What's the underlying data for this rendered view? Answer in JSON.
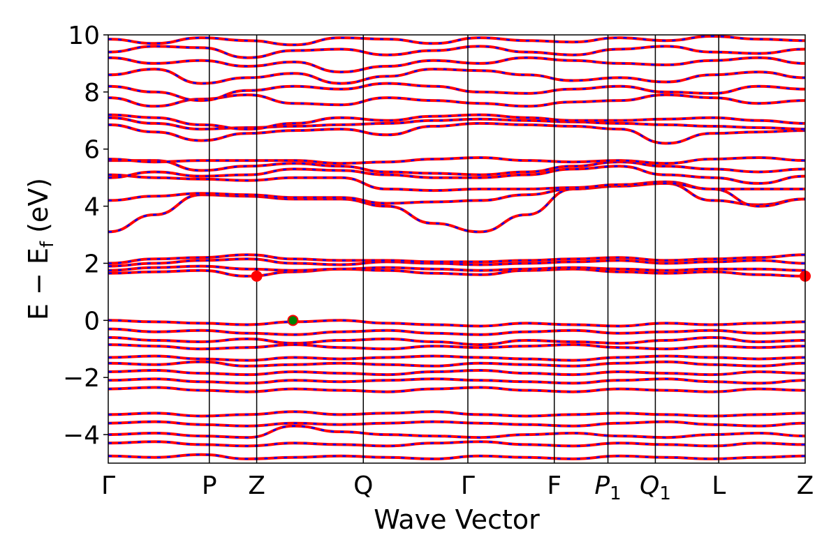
{
  "chart_data": {
    "type": "line",
    "title": "",
    "xlabel": "Wave Vector",
    "ylabel": {
      "main": "E − E",
      "sub": "f",
      "unit": " (eV)"
    },
    "ylim": [
      -5,
      10
    ],
    "yticks": [
      -4,
      -2,
      0,
      2,
      4,
      6,
      8,
      10
    ],
    "ytick_labels": [
      "−4",
      "−2",
      "0",
      "2",
      "4",
      "6",
      "8",
      "10"
    ],
    "kpoints": [
      {
        "label": "Γ",
        "sub": "",
        "italic": false,
        "x": 0.0
      },
      {
        "label": "P",
        "sub": "",
        "italic": false,
        "x": 1.45
      },
      {
        "label": "Z",
        "sub": "",
        "italic": false,
        "x": 2.13
      },
      {
        "label": "Q",
        "sub": "",
        "italic": false,
        "x": 3.66
      },
      {
        "label": "Γ",
        "sub": "",
        "italic": false,
        "x": 5.16
      },
      {
        "label": "F",
        "sub": "",
        "italic": false,
        "x": 6.4
      },
      {
        "label": "P",
        "sub": "1",
        "italic": true,
        "x": 7.17
      },
      {
        "label": "Q",
        "sub": "1",
        "italic": true,
        "x": 7.85
      },
      {
        "label": "L",
        "sub": "",
        "italic": false,
        "x": 8.76
      },
      {
        "label": "Z",
        "sub": "",
        "italic": false,
        "x": 10.0
      }
    ],
    "xlim": [
      0,
      10
    ],
    "colors": {
      "spin_up": "#ff0000",
      "spin_down": "#0000ff",
      "vbm": "#008000",
      "cbm": "#ff0000",
      "kline": "#000000"
    },
    "markers": [
      {
        "name": "VBM",
        "x": 2.65,
        "y": 0.0,
        "color": "#008000"
      },
      {
        "name": "CBM",
        "x": 2.13,
        "y": 1.55,
        "color": "#ff0000"
      },
      {
        "name": "CBM",
        "x": 10.0,
        "y": 1.55,
        "color": "#ff0000"
      }
    ],
    "series": [
      {
        "values": [
          3.1,
          3.7,
          4.4,
          4.35,
          4.25,
          4.25,
          4.0,
          3.4,
          3.1,
          3.7,
          4.6,
          4.7,
          4.8,
          4.2,
          4.05,
          4.25
        ]
      },
      {
        "values": [
          4.2,
          4.35,
          4.45,
          4.4,
          4.3,
          4.3,
          4.1,
          4.15,
          4.2,
          4.4,
          4.6,
          4.75,
          4.85,
          4.6,
          4.0,
          4.25
        ]
      },
      {
        "values": [
          5.1,
          5.0,
          4.95,
          4.9,
          5.0,
          5.0,
          4.6,
          4.55,
          4.6,
          4.6,
          4.65,
          4.75,
          4.8,
          4.6,
          4.6,
          4.6
        ]
      },
      {
        "values": [
          5.0,
          5.2,
          5.05,
          5.1,
          5.3,
          5.25,
          5.1,
          5.0,
          5.0,
          5.1,
          5.3,
          5.4,
          5.1,
          5.0,
          4.8,
          5.05
        ]
      },
      {
        "values": [
          5.6,
          5.6,
          5.25,
          5.4,
          5.5,
          5.4,
          5.2,
          5.15,
          5.1,
          5.2,
          5.4,
          5.55,
          5.4,
          5.3,
          5.2,
          5.3
        ]
      },
      {
        "values": [
          5.65,
          5.55,
          5.6,
          5.6,
          5.6,
          5.5,
          5.55,
          5.65,
          5.7,
          5.6,
          5.55,
          5.6,
          5.5,
          5.65,
          5.7,
          5.6
        ]
      },
      {
        "values": [
          6.85,
          6.6,
          6.3,
          6.55,
          6.65,
          6.7,
          6.5,
          6.8,
          6.9,
          6.85,
          6.8,
          6.7,
          6.2,
          6.55,
          6.6,
          6.65
        ]
      },
      {
        "values": [
          7.1,
          6.9,
          6.7,
          6.75,
          6.8,
          6.85,
          6.9,
          7.0,
          7.05,
          7.0,
          6.95,
          6.9,
          6.85,
          6.8,
          6.75,
          6.7
        ]
      },
      {
        "values": [
          7.2,
          7.1,
          6.85,
          6.7,
          6.9,
          7.1,
          7.0,
          7.15,
          7.2,
          7.1,
          7.0,
          7.0,
          7.05,
          7.1,
          7.0,
          6.9
        ]
      },
      {
        "values": [
          7.8,
          7.5,
          7.75,
          7.9,
          7.6,
          7.55,
          7.8,
          7.7,
          7.6,
          7.5,
          7.65,
          7.7,
          7.9,
          7.8,
          7.6,
          7.7
        ]
      },
      {
        "values": [
          8.2,
          8.0,
          7.7,
          8.05,
          8.2,
          8.1,
          8.3,
          8.2,
          8.0,
          7.95,
          8.1,
          8.2,
          8.0,
          7.95,
          8.2,
          8.1
        ]
      },
      {
        "values": [
          8.6,
          8.8,
          8.3,
          8.5,
          8.65,
          8.3,
          8.55,
          8.8,
          8.75,
          8.6,
          8.4,
          8.5,
          8.35,
          8.6,
          8.7,
          8.5
        ]
      },
      {
        "values": [
          9.2,
          9.0,
          9.1,
          8.9,
          9.05,
          8.7,
          8.9,
          9.1,
          9.0,
          9.2,
          9.1,
          9.0,
          8.95,
          9.1,
          9.2,
          9.0
        ]
      },
      {
        "values": [
          9.4,
          9.6,
          9.55,
          9.2,
          9.45,
          9.5,
          9.3,
          9.45,
          9.6,
          9.4,
          9.3,
          9.5,
          9.6,
          9.4,
          9.35,
          9.5
        ]
      },
      {
        "values": [
          9.85,
          9.7,
          9.9,
          9.8,
          9.65,
          9.9,
          9.85,
          9.7,
          9.9,
          9.8,
          9.75,
          9.9,
          9.8,
          9.95,
          9.85,
          9.8
        ]
      },
      {
        "values": [
          1.65,
          1.7,
          1.75,
          1.55,
          1.7,
          1.8,
          1.75,
          1.65,
          1.6,
          1.75,
          1.8,
          1.7,
          1.65,
          1.7,
          1.6,
          1.55
        ]
      },
      {
        "values": [
          1.75,
          1.85,
          1.9,
          1.8,
          1.75,
          1.8,
          1.85,
          1.8,
          1.75,
          1.8,
          1.85,
          1.8,
          1.75,
          1.8,
          1.8,
          1.75
        ]
      },
      {
        "values": [
          1.9,
          2.0,
          2.1,
          2.15,
          2.0,
          1.95,
          2.05,
          2.0,
          1.95,
          2.0,
          2.05,
          2.1,
          2.0,
          2.05,
          2.1,
          2.0
        ]
      },
      {
        "values": [
          2.0,
          2.15,
          2.2,
          2.3,
          2.15,
          2.1,
          2.1,
          2.05,
          2.05,
          2.1,
          2.15,
          2.2,
          2.1,
          2.15,
          2.2,
          2.3
        ]
      },
      {
        "values": [
          0.0,
          -0.05,
          -0.1,
          -0.15,
          -0.05,
          0.0,
          -0.1,
          -0.15,
          -0.2,
          -0.1,
          -0.15,
          -0.2,
          -0.1,
          -0.15,
          -0.1,
          -0.05
        ]
      },
      {
        "values": [
          -0.3,
          -0.4,
          -0.35,
          -0.45,
          -0.5,
          -0.4,
          -0.35,
          -0.45,
          -0.5,
          -0.4,
          -0.35,
          -0.45,
          -0.4,
          -0.35,
          -0.45,
          -0.4
        ]
      },
      {
        "values": [
          -0.6,
          -0.7,
          -0.75,
          -0.65,
          -0.8,
          -0.7,
          -0.65,
          -0.75,
          -0.85,
          -0.7,
          -0.75,
          -0.8,
          -0.7,
          -0.6,
          -0.75,
          -0.7
        ]
      },
      {
        "values": [
          -0.85,
          -0.9,
          -1.0,
          -0.95,
          -0.85,
          -0.95,
          -1.0,
          -0.9,
          -0.95,
          -0.9,
          -0.85,
          -0.95,
          -1.0,
          -0.9,
          -0.95,
          -0.9
        ]
      },
      {
        "values": [
          -1.3,
          -1.25,
          -1.35,
          -1.4,
          -1.3,
          -1.35,
          -1.3,
          -1.25,
          -1.3,
          -1.35,
          -1.4,
          -1.3,
          -1.25,
          -1.3,
          -1.35,
          -1.3
        ]
      },
      {
        "values": [
          -1.5,
          -1.55,
          -1.45,
          -1.6,
          -1.55,
          -1.5,
          -1.55,
          -1.6,
          -1.5,
          -1.55,
          -1.6,
          -1.5,
          -1.45,
          -1.55,
          -1.6,
          -1.5
        ]
      },
      {
        "values": [
          -1.8,
          -1.75,
          -1.85,
          -1.9,
          -1.8,
          -1.85,
          -1.9,
          -1.8,
          -1.75,
          -1.85,
          -1.9,
          -1.8,
          -1.85,
          -1.9,
          -1.8,
          -1.85
        ]
      },
      {
        "values": [
          -2.1,
          -2.05,
          -2.15,
          -2.2,
          -2.1,
          -2.15,
          -2.1,
          -2.05,
          -2.1,
          -2.15,
          -2.2,
          -2.1,
          -2.05,
          -2.15,
          -2.2,
          -2.1
        ]
      },
      {
        "values": [
          -2.4,
          -2.35,
          -2.45,
          -2.5,
          -2.4,
          -2.45,
          -2.5,
          -2.4,
          -2.35,
          -2.45,
          -2.5,
          -2.4,
          -2.45,
          -2.5,
          -2.4,
          -2.45
        ]
      },
      {
        "values": [
          -3.3,
          -3.25,
          -3.35,
          -3.3,
          -3.2,
          -3.3,
          -3.25,
          -3.2,
          -3.3,
          -3.35,
          -3.3,
          -3.25,
          -3.3,
          -3.35,
          -3.3,
          -3.25
        ]
      },
      {
        "values": [
          -3.6,
          -3.55,
          -3.65,
          -3.7,
          -3.6,
          -3.65,
          -3.6,
          -3.55,
          -3.6,
          -3.65,
          -3.7,
          -3.6,
          -3.55,
          -3.65,
          -3.7,
          -3.6
        ]
      },
      {
        "values": [
          -4.0,
          -3.95,
          -4.05,
          -4.1,
          -3.7,
          -3.9,
          -4.0,
          -4.05,
          -4.1,
          -4.0,
          -3.95,
          -4.05,
          -4.1,
          -4.0,
          -3.95,
          -4.05
        ]
      },
      {
        "values": [
          -4.3,
          -4.25,
          -4.35,
          -4.4,
          -4.3,
          -4.35,
          -4.4,
          -4.3,
          -4.25,
          -4.35,
          -4.4,
          -4.3,
          -4.35,
          -4.4,
          -4.3,
          -4.35
        ]
      },
      {
        "values": [
          -4.75,
          -4.8,
          -4.7,
          -4.85,
          -4.8,
          -4.75,
          -4.8,
          -4.85,
          -4.75,
          -4.8,
          -4.85,
          -4.75,
          -4.8,
          -4.85,
          -4.8,
          -4.75
        ]
      }
    ]
  }
}
